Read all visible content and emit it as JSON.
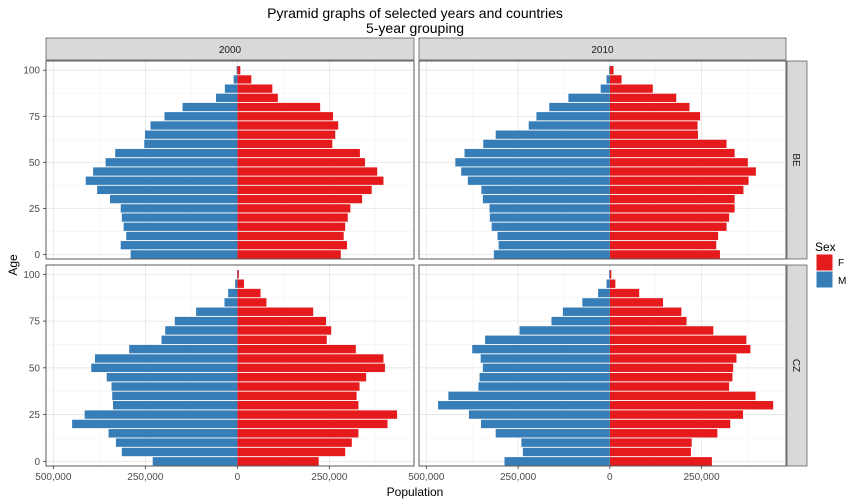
{
  "chart_data": {
    "type": "bar",
    "orientation": "horizontal",
    "title": "Pyramid graphs of selected years and countries",
    "subtitle": "5-year grouping",
    "xlabel": "Population",
    "ylabel": "Age",
    "facet_columns": [
      "2000",
      "2010"
    ],
    "facet_rows": [
      "BE",
      "CZ"
    ],
    "legend": {
      "title": "Sex",
      "placement": "right",
      "entries": [
        {
          "label": "F",
          "color": "#e41a1c"
        },
        {
          "label": "M",
          "color": "#377eb8"
        }
      ]
    },
    "x_ticks": [
      {
        "value": -500000,
        "label": "500,000"
      },
      {
        "value": -250000,
        "label": "250,000"
      },
      {
        "value": 0,
        "label": "0"
      },
      {
        "value": 250000,
        "label": "250,000"
      }
    ],
    "y_ticks": [
      0,
      25,
      50,
      75,
      100
    ],
    "xlim": [
      -520000,
      480000
    ],
    "ylim": [
      -2.5,
      105
    ],
    "grid": true,
    "age_groups": [
      0,
      5,
      10,
      15,
      20,
      25,
      30,
      35,
      40,
      45,
      50,
      55,
      60,
      65,
      70,
      75,
      80,
      85,
      90,
      95,
      100
    ],
    "panels": [
      {
        "year": "2000",
        "country": "BE",
        "female": [
          281000,
          298000,
          289000,
          293000,
          300000,
          307000,
          339000,
          365000,
          397000,
          380000,
          347000,
          333000,
          258000,
          266000,
          274000,
          260000,
          225000,
          110000,
          95000,
          38000,
          8000
        ],
        "male": [
          -290000,
          -317000,
          -302000,
          -309000,
          -314000,
          -317000,
          -346000,
          -381000,
          -412000,
          -392000,
          -358000,
          -332000,
          -253000,
          -251000,
          -236000,
          -198000,
          -149000,
          -58000,
          -34000,
          -10000,
          -2000
        ]
      },
      {
        "year": "2010",
        "country": "BE",
        "female": [
          300000,
          290000,
          295000,
          318000,
          325000,
          340000,
          340000,
          364000,
          378000,
          398000,
          376000,
          340000,
          318000,
          240000,
          239000,
          246000,
          217000,
          181000,
          117000,
          32000,
          10000
        ],
        "male": [
          -316000,
          -303000,
          -306000,
          -322000,
          -327000,
          -328000,
          -346000,
          -350000,
          -387000,
          -405000,
          -421000,
          -396000,
          -345000,
          -311000,
          -221000,
          -200000,
          -165000,
          -113000,
          -25000,
          -9000,
          -2000
        ]
      },
      {
        "year": "2000",
        "country": "CZ",
        "female": [
          221000,
          293000,
          311000,
          329000,
          408000,
          434000,
          329000,
          324000,
          332000,
          350000,
          401000,
          397000,
          322000,
          243000,
          255000,
          241000,
          206000,
          79000,
          63000,
          18000,
          4000
        ],
        "male": [
          -230000,
          -314000,
          -330000,
          -350000,
          -449000,
          -415000,
          -338000,
          -340000,
          -342000,
          -355000,
          -397000,
          -387000,
          -294000,
          -206000,
          -196000,
          -170000,
          -112000,
          -35000,
          -25000,
          -6000,
          -1000
        ]
      },
      {
        "year": "2010",
        "country": "CZ",
        "female": [
          278000,
          221000,
          223000,
          293000,
          328000,
          363000,
          445000,
          397000,
          325000,
          334000,
          336000,
          345000,
          383000,
          372000,
          282000,
          209000,
          195000,
          145000,
          80000,
          15000,
          4000
        ],
        "male": [
          -287000,
          -237000,
          -241000,
          -311000,
          -351000,
          -384000,
          -468000,
          -440000,
          -358000,
          -355000,
          -346000,
          -352000,
          -375000,
          -340000,
          -246000,
          -159000,
          -128000,
          -75000,
          -32000,
          -9000,
          -2000
        ]
      }
    ]
  }
}
